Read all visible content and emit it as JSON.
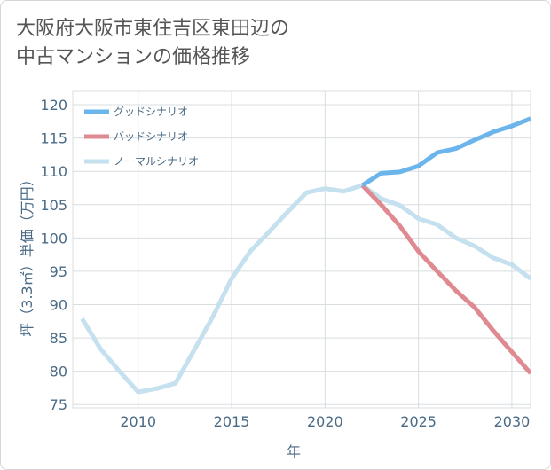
{
  "title_lines": [
    "大阪府大阪市東住吉区東田辺の",
    "中古マンションの価格推移"
  ],
  "chart_data": {
    "type": "line",
    "title": "大阪府大阪市東住吉区東田辺の中古マンションの価格推移",
    "xlabel": "年",
    "ylabel": "坪（3.3㎡）単価（万円）",
    "xlim": [
      2006.5,
      2031
    ],
    "ylim": [
      74.5,
      122
    ],
    "xticks": [
      2010,
      2015,
      2020,
      2025,
      2030
    ],
    "yticks": [
      75,
      80,
      85,
      90,
      95,
      100,
      105,
      110,
      115,
      120
    ],
    "grid": true,
    "legend_position": "top-left",
    "series": [
      {
        "name": "グッドシナリオ",
        "color": "#6bb5ec",
        "x": [
          2022,
          2023,
          2024,
          2025,
          2026,
          2027,
          2028,
          2029,
          2030,
          2031
        ],
        "y": [
          107.9,
          109.7,
          109.9,
          110.8,
          112.8,
          113.4,
          114.7,
          115.9,
          116.8,
          117.9
        ]
      },
      {
        "name": "バッドシナリオ",
        "color": "#df8a91",
        "x": [
          2022,
          2023,
          2024,
          2025,
          2026,
          2027,
          2028,
          2029,
          2030,
          2031
        ],
        "y": [
          107.9,
          105.0,
          101.8,
          98.0,
          95.0,
          92.1,
          89.6,
          86.1,
          82.9,
          79.7
        ]
      },
      {
        "name": "ノーマルシナリオ",
        "color": "#c5e0ee",
        "x": [
          2007,
          2008,
          2009,
          2010,
          2011,
          2012,
          2013,
          2014,
          2015,
          2016,
          2017,
          2018,
          2019,
          2020,
          2021,
          2022,
          2023,
          2024,
          2025,
          2026,
          2027,
          2028,
          2029,
          2030,
          2031
        ],
        "y": [
          87.9,
          83.3,
          80.0,
          76.9,
          77.4,
          78.2,
          83.2,
          88.2,
          93.9,
          98.0,
          100.9,
          103.9,
          106.8,
          107.4,
          107.0,
          107.9,
          105.9,
          104.9,
          102.9,
          102.0,
          100.0,
          98.8,
          97.0,
          96.0,
          93.9
        ]
      }
    ]
  }
}
